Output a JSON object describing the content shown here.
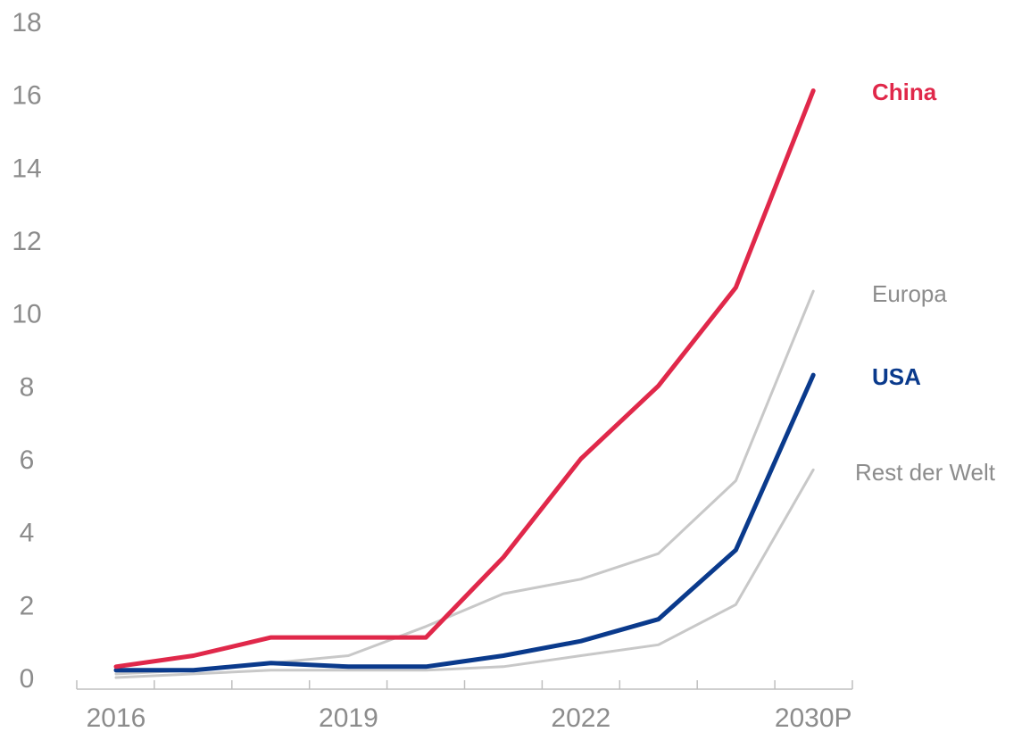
{
  "chart_data": {
    "type": "line",
    "title": "",
    "xlabel": "",
    "ylabel": "",
    "ylim": [
      0,
      18
    ],
    "yticks": [
      "0",
      "2",
      "4",
      "6",
      "8",
      "10",
      "12",
      "14",
      "16",
      "18"
    ],
    "x_tick_labels": [
      "2016",
      "2019",
      "2022",
      "2030P"
    ],
    "x_tick_label_positions": [
      0,
      3,
      6,
      9
    ],
    "x": [
      0,
      1,
      2,
      3,
      4,
      5,
      6,
      7,
      8,
      9
    ],
    "grid": false,
    "series": [
      {
        "name": "Rest der Welt",
        "color": "#c8c8c8",
        "bold": false,
        "stroke": "thin",
        "values": [
          0.0,
          0.1,
          0.2,
          0.2,
          0.2,
          0.3,
          0.6,
          0.9,
          2.0,
          5.7
        ]
      },
      {
        "name": "Europa",
        "color": "#c8c8c8",
        "bold": false,
        "stroke": "thin",
        "values": [
          0.1,
          0.2,
          0.4,
          0.6,
          1.4,
          2.3,
          2.7,
          3.4,
          5.4,
          10.6
        ]
      },
      {
        "name": "USA",
        "color": "#0a3a8c",
        "bold": true,
        "stroke": "thick",
        "values": [
          0.2,
          0.2,
          0.4,
          0.3,
          0.3,
          0.6,
          1.0,
          1.6,
          3.5,
          8.3
        ]
      },
      {
        "name": "China",
        "color": "#e0284a",
        "bold": true,
        "stroke": "thick",
        "values": [
          0.3,
          0.6,
          1.1,
          1.1,
          1.1,
          3.3,
          6.0,
          8.0,
          10.7,
          16.1
        ]
      }
    ],
    "label_color_muted": "#8c8c8c",
    "axis_color": "#bfbfbf"
  }
}
